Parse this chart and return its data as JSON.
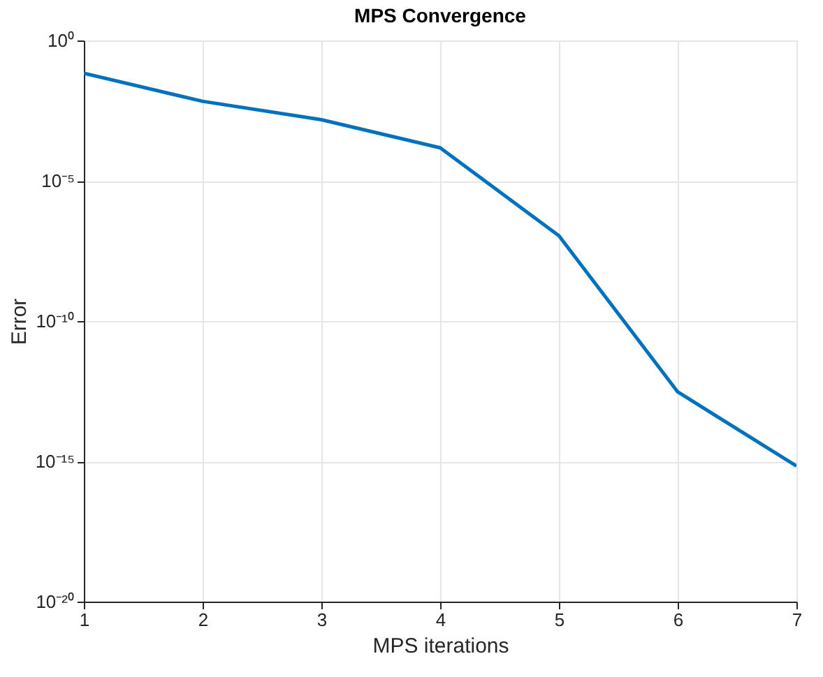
{
  "chart_data": {
    "type": "line",
    "title": "MPS Convergence",
    "xlabel": "MPS iterations",
    "ylabel": "Error",
    "x": [
      1,
      2,
      3,
      4,
      5,
      6,
      7
    ],
    "series": [
      {
        "color": "#0072bd",
        "values": [
          0.068,
          0.0068,
          0.0015,
          0.00015,
          1.1e-07,
          3e-13,
          6.8e-16
        ]
      }
    ],
    "xlim": [
      1,
      7
    ],
    "xticks": [
      1,
      2,
      3,
      4,
      5,
      6,
      7
    ],
    "ylim": [
      1e-20,
      1
    ],
    "yticks": [
      {
        "value": 1e-20,
        "label": "10⁻²⁰"
      },
      {
        "value": 1e-15,
        "label": "10⁻¹⁵"
      },
      {
        "value": 1e-10,
        "label": "10⁻¹⁰"
      },
      {
        "value": 1e-05,
        "label": "10⁻⁵"
      },
      {
        "value": 1,
        "label": "10⁰"
      }
    ],
    "log": "y",
    "grid": true,
    "marker": "none",
    "line_style": "solid"
  }
}
